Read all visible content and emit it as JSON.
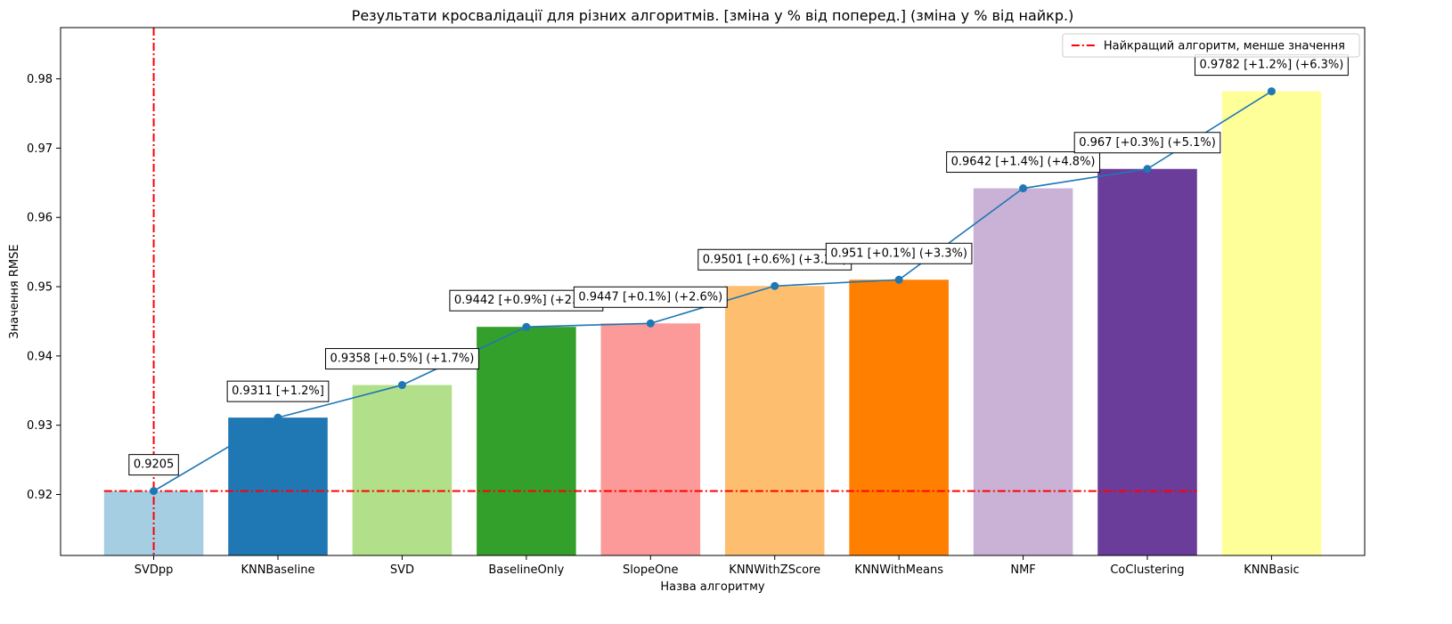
{
  "chart_data": {
    "type": "bar",
    "title": "Результати кросвалідації для різних алгоритмів. [зміна у % від поперед.] (зміна у % від найкр.)",
    "xlabel": "Назва алгоритму",
    "ylabel": "Значення RMSE",
    "ylim": [
      0.9112,
      0.9874
    ],
    "yticks": [
      0.92,
      0.93,
      0.94,
      0.95,
      0.96,
      0.97,
      0.98
    ],
    "ytick_labels": [
      "0.92",
      "0.93",
      "0.94",
      "0.95",
      "0.96",
      "0.97",
      "0.98"
    ],
    "grid": false,
    "categories": [
      "SVDpp",
      "KNNBaseline",
      "SVD",
      "BaselineOnly",
      "SlopeOne",
      "KNNWithZScore",
      "KNNWithMeans",
      "NMF",
      "CoClustering",
      "KNNBasic"
    ],
    "values": [
      0.9205,
      0.9311,
      0.9358,
      0.9442,
      0.9447,
      0.9501,
      0.951,
      0.9642,
      0.967,
      0.9782
    ],
    "bar_colors": [
      "#a6cee3",
      "#1f78b4",
      "#b2df8a",
      "#33a02c",
      "#fb9a99",
      "#fdbf6f",
      "#ff7f00",
      "#cab2d6",
      "#6a3d9a",
      "#ffff99"
    ],
    "line_color": "#1f77b4",
    "annotations": [
      "0.9205",
      "0.9311 [+1.2%]",
      "0.9358 [+0.5%] (+1.7%)",
      "0.9442 [+0.9%] (+2.6%)",
      "0.9447 [+0.1%] (+2.6%)",
      "0.9501 [+0.6%] (+3.2%)",
      "0.951 [+0.1%] (+3.3%)",
      "0.9642 [+1.4%] (+4.8%)",
      "0.967 [+0.3%] (+5.1%)",
      "0.9782 [+1.2%] (+6.3%)"
    ],
    "reference": {
      "value": 0.9205,
      "category_index": 0,
      "color": "#ff0000",
      "label": "Найкращий алгоритм, менше значення"
    },
    "legend_position": "top-right"
  }
}
